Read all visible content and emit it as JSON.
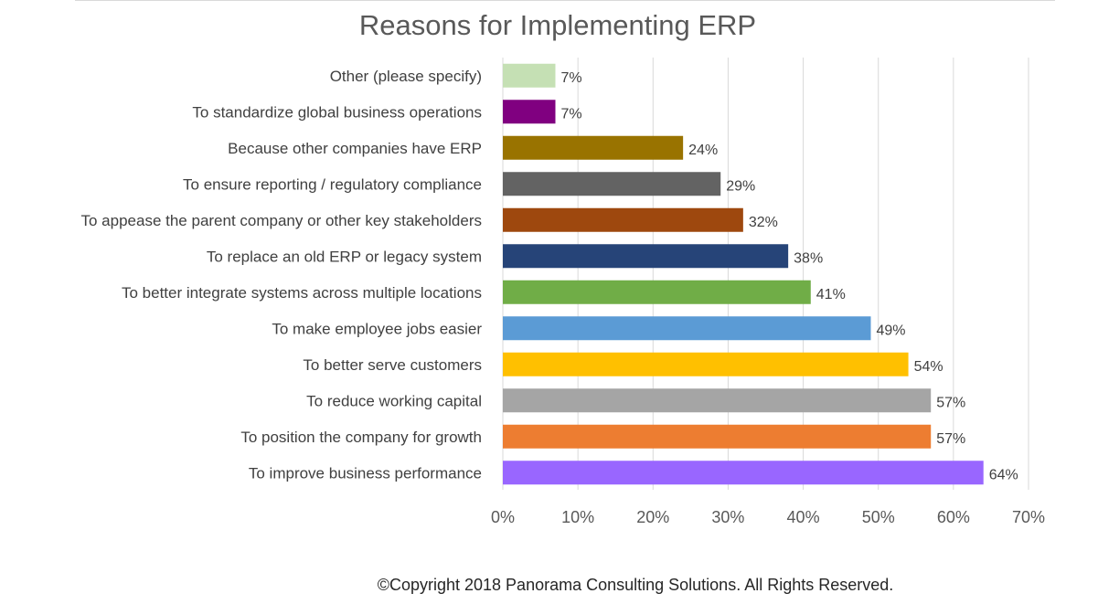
{
  "chart_data": {
    "type": "bar",
    "orientation": "horizontal",
    "title": "Reasons for Implementing ERP",
    "xlabel": "",
    "ylabel": "",
    "xlim": [
      0,
      70
    ],
    "grid": true,
    "legend": "none",
    "categories": [
      "Other (please specify)",
      "To standardize global business operations",
      "Because other companies have ERP",
      "To ensure reporting / regulatory compliance",
      "To appease the parent company or other key stakeholders",
      "To replace an old ERP or legacy system",
      "To better integrate systems across multiple locations",
      "To make employee jobs easier",
      "To better serve customers",
      "To reduce working capital",
      "To position the company for growth",
      "To improve business performance"
    ],
    "values": [
      7,
      7,
      24,
      29,
      32,
      38,
      41,
      49,
      54,
      57,
      57,
      64
    ],
    "value_labels": [
      "7%",
      "7%",
      "24%",
      "29%",
      "32%",
      "38%",
      "41%",
      "49%",
      "54%",
      "57%",
      "57%",
      "64%"
    ],
    "colors": [
      "#c5e0b4",
      "#800080",
      "#997300",
      "#636363",
      "#9e480e",
      "#264478",
      "#70ad47",
      "#5b9bd5",
      "#ffc000",
      "#a5a5a5",
      "#ed7d31",
      "#9966ff"
    ],
    "ticks": [
      0,
      10,
      20,
      30,
      40,
      50,
      60,
      70
    ],
    "tick_labels": [
      "0%",
      "10%",
      "20%",
      "30%",
      "40%",
      "50%",
      "60%",
      "70%"
    ]
  },
  "footer": {
    "copyright": "©Copyright 2018 Panorama Consulting Solutions.  All Rights Reserved."
  }
}
